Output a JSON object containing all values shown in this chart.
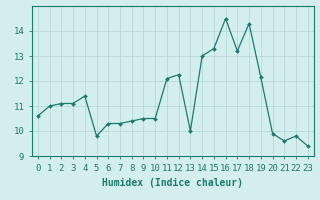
{
  "x": [
    0,
    1,
    2,
    3,
    4,
    5,
    6,
    7,
    8,
    9,
    10,
    11,
    12,
    13,
    14,
    15,
    16,
    17,
    18,
    19,
    20,
    21,
    22,
    23
  ],
  "y": [
    10.6,
    11.0,
    11.1,
    11.1,
    11.4,
    9.8,
    10.3,
    10.3,
    10.4,
    10.5,
    10.5,
    12.1,
    12.25,
    10.0,
    13.0,
    13.3,
    14.5,
    13.2,
    14.3,
    12.15,
    9.9,
    9.6,
    9.8,
    9.4
  ],
  "line_color": "#1a7a6e",
  "marker": "D",
  "marker_size": 2.0,
  "bg_color": "#d4eeee",
  "grid_color": "#b8d8d8",
  "xlabel": "Humidex (Indice chaleur)",
  "xlim": [
    -0.5,
    23.5
  ],
  "ylim": [
    9,
    15
  ],
  "yticks": [
    9,
    10,
    11,
    12,
    13,
    14
  ],
  "xtick_labels": [
    "0",
    "1",
    "2",
    "3",
    "4",
    "5",
    "6",
    "7",
    "8",
    "9",
    "10",
    "11",
    "12",
    "13",
    "14",
    "15",
    "16",
    "17",
    "18",
    "19",
    "20",
    "21",
    "22",
    "23"
  ],
  "xlabel_fontsize": 7,
  "tick_fontsize": 6.5
}
